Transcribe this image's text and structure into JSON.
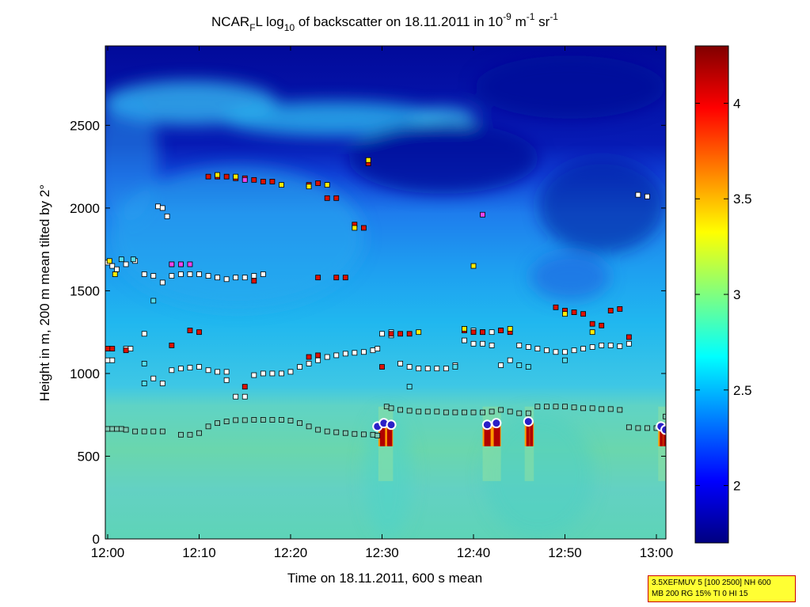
{
  "chart_data": {
    "type": "heatmap",
    "title": {
      "prefix": "NCAR",
      "prefix_sub": "F",
      "main1": "L log",
      "log_sub": "10",
      "main2": " of backscatter on 18.11.2011 in 10",
      "exp1": "-9",
      "mid": " m",
      "exp2": "-1",
      "mid2": " sr",
      "exp3": "-1"
    },
    "xlabel": "Time on 18.11.2011, 600 s mean",
    "ylabel": "Height in m, 200 m mean tilted by 2°",
    "x_ticks": [
      "12:00",
      "12:10",
      "12:20",
      "12:30",
      "12:40",
      "12:50",
      "13:00"
    ],
    "y_ticks": [
      "0",
      "500",
      "1000",
      "1500",
      "2000",
      "2500"
    ],
    "xlim_minutes": [
      0,
      61.5
    ],
    "ylim_m": [
      0,
      2980
    ],
    "colorbar": {
      "ticks": [
        "2",
        "2.5",
        "3",
        "3.5",
        "4"
      ],
      "range": [
        1.7,
        4.3
      ],
      "colormap": "jet"
    },
    "boundary_layer_markers": [
      [
        0,
        665
      ],
      [
        0.5,
        665
      ],
      [
        1,
        665
      ],
      [
        1.5,
        665
      ],
      [
        2,
        660
      ],
      [
        3,
        650
      ],
      [
        4,
        650
      ],
      [
        5,
        650
      ],
      [
        6,
        650
      ],
      [
        8,
        630
      ],
      [
        9,
        630
      ],
      [
        10,
        640
      ],
      [
        11,
        680
      ],
      [
        12,
        700
      ],
      [
        13,
        710
      ],
      [
        14,
        718
      ],
      [
        15,
        718
      ],
      [
        16,
        720
      ],
      [
        17,
        720
      ],
      [
        18,
        720
      ],
      [
        19,
        720
      ],
      [
        20,
        715
      ],
      [
        21,
        700
      ],
      [
        22,
        680
      ],
      [
        23,
        660
      ],
      [
        24,
        650
      ],
      [
        25,
        645
      ],
      [
        26,
        640
      ],
      [
        27,
        635
      ],
      [
        28,
        632
      ],
      [
        29,
        630
      ],
      [
        29.5,
        625
      ],
      [
        30.5,
        800
      ],
      [
        31,
        790
      ],
      [
        32,
        780
      ],
      [
        33,
        775
      ],
      [
        34,
        770
      ],
      [
        35,
        770
      ],
      [
        36,
        770
      ],
      [
        37,
        765
      ],
      [
        38,
        765
      ],
      [
        39,
        765
      ],
      [
        40,
        765
      ],
      [
        41,
        765
      ],
      [
        42,
        770
      ],
      [
        43,
        780
      ],
      [
        44,
        770
      ],
      [
        45,
        760
      ],
      [
        46,
        760
      ],
      [
        47,
        800
      ],
      [
        48,
        800
      ],
      [
        49,
        800
      ],
      [
        50,
        800
      ],
      [
        51,
        795
      ],
      [
        52,
        790
      ],
      [
        53,
        790
      ],
      [
        54,
        785
      ],
      [
        55,
        785
      ],
      [
        56,
        780
      ],
      [
        57,
        675
      ],
      [
        58,
        670
      ],
      [
        59,
        670
      ],
      [
        60,
        670
      ],
      [
        61,
        740
      ]
    ],
    "residual_layer_markers": [
      [
        0,
        1080
      ],
      [
        0.5,
        1080
      ],
      [
        2,
        1150
      ],
      [
        2.5,
        1150
      ],
      [
        4,
        1240
      ],
      [
        5,
        970
      ],
      [
        6,
        940
      ],
      [
        7,
        1020
      ],
      [
        8,
        1030
      ],
      [
        9,
        1035
      ],
      [
        10,
        1040
      ],
      [
        11,
        1020
      ],
      [
        12,
        1010
      ],
      [
        13,
        1010
      ],
      [
        13,
        960
      ],
      [
        14,
        860
      ],
      [
        15,
        860
      ],
      [
        16,
        990
      ],
      [
        17,
        1000
      ],
      [
        18,
        1000
      ],
      [
        19,
        1000
      ],
      [
        20,
        1010
      ],
      [
        21,
        1040
      ],
      [
        22,
        1060
      ],
      [
        23,
        1080
      ],
      [
        24,
        1100
      ],
      [
        25,
        1110
      ],
      [
        26,
        1120
      ],
      [
        27,
        1125
      ],
      [
        28,
        1130
      ],
      [
        29,
        1140
      ],
      [
        29.5,
        1150
      ],
      [
        31,
        1230
      ],
      [
        32,
        1060
      ],
      [
        33,
        1040
      ],
      [
        34,
        1030
      ],
      [
        35,
        1030
      ],
      [
        36,
        1030
      ],
      [
        37,
        1030
      ],
      [
        38,
        1050
      ],
      [
        39,
        1200
      ],
      [
        40,
        1180
      ],
      [
        41,
        1180
      ],
      [
        42,
        1170
      ],
      [
        43,
        1050
      ],
      [
        44,
        1080
      ],
      [
        45,
        1170
      ],
      [
        46,
        1160
      ],
      [
        47,
        1150
      ],
      [
        48,
        1140
      ],
      [
        49,
        1130
      ],
      [
        50,
        1130
      ],
      [
        51,
        1140
      ],
      [
        52,
        1150
      ],
      [
        53,
        1160
      ],
      [
        54,
        1170
      ],
      [
        55,
        1170
      ],
      [
        56,
        1165
      ],
      [
        57,
        1180
      ]
    ],
    "upper_layer_markers": [
      [
        0,
        1670
      ],
      [
        0.5,
        1650
      ],
      [
        1,
        1630
      ],
      [
        2,
        1660
      ],
      [
        3,
        1680
      ],
      [
        4,
        1600
      ],
      [
        5,
        1590
      ],
      [
        6,
        1550
      ],
      [
        7,
        1590
      ],
      [
        8,
        1600
      ],
      [
        9,
        1600
      ],
      [
        10,
        1600
      ],
      [
        11,
        1590
      ],
      [
        12,
        1580
      ],
      [
        13,
        1570
      ],
      [
        14,
        1580
      ],
      [
        15,
        1580
      ],
      [
        16,
        1590
      ],
      [
        17,
        1600
      ],
      [
        5.5,
        2010
      ],
      [
        6,
        2000
      ],
      [
        6.5,
        1950
      ],
      [
        30,
        1240
      ],
      [
        31,
        1250
      ],
      [
        39,
        1270
      ],
      [
        40,
        1260
      ],
      [
        41,
        1250
      ],
      [
        42,
        1250
      ],
      [
        43,
        1260
      ],
      [
        58,
        2080
      ],
      [
        59,
        2070
      ]
    ],
    "aerosol_red_markers": [
      [
        0,
        1150
      ],
      [
        0.5,
        1150
      ],
      [
        2,
        1140
      ],
      [
        7,
        1660
      ],
      [
        8,
        1660
      ],
      [
        7,
        1170
      ],
      [
        9,
        1260
      ],
      [
        10,
        1250
      ],
      [
        11,
        2190
      ],
      [
        12,
        2190
      ],
      [
        13,
        2190
      ],
      [
        14,
        2180
      ],
      [
        15,
        2180
      ],
      [
        16,
        2170
      ],
      [
        17,
        2160
      ],
      [
        18,
        2160
      ],
      [
        15,
        920
      ],
      [
        16,
        1560
      ],
      [
        23,
        1580
      ],
      [
        25,
        1580
      ],
      [
        26,
        1580
      ],
      [
        22,
        2140
      ],
      [
        23,
        2150
      ],
      [
        24,
        2060
      ],
      [
        25,
        2060
      ],
      [
        27,
        1900
      ],
      [
        28,
        1880
      ],
      [
        28.5,
        2270
      ],
      [
        30,
        1040
      ],
      [
        31,
        1240
      ],
      [
        32,
        1240
      ],
      [
        33,
        1240
      ],
      [
        22,
        1100
      ],
      [
        23,
        1110
      ],
      [
        39,
        1260
      ],
      [
        40,
        1250
      ],
      [
        41,
        1250
      ],
      [
        43,
        1260
      ],
      [
        44,
        1250
      ],
      [
        49,
        1400
      ],
      [
        50,
        1380
      ],
      [
        51,
        1370
      ],
      [
        52,
        1360
      ],
      [
        53,
        1300
      ],
      [
        54,
        1290
      ],
      [
        55,
        1380
      ],
      [
        56,
        1390
      ],
      [
        57,
        1220
      ]
    ],
    "aerosol_yellow_markers": [
      [
        0.2,
        1680
      ],
      [
        0.8,
        1600
      ],
      [
        12,
        2200
      ],
      [
        14,
        2190
      ],
      [
        19,
        2140
      ],
      [
        22,
        2130
      ],
      [
        24,
        2140
      ],
      [
        27,
        1880
      ],
      [
        28.5,
        2290
      ],
      [
        34,
        1250
      ],
      [
        39,
        1270
      ],
      [
        44,
        1270
      ],
      [
        50,
        1360
      ],
      [
        53,
        1250
      ],
      [
        40,
        1650
      ]
    ],
    "aerosol_magenta_markers": [
      [
        7,
        1660
      ],
      [
        8,
        1660
      ],
      [
        9,
        1660
      ],
      [
        15,
        2170
      ],
      [
        41,
        1960
      ]
    ],
    "aerosol_cyan_markers": [
      [
        1.5,
        1690
      ],
      [
        2.8,
        1690
      ],
      [
        5,
        1440
      ],
      [
        4,
        940
      ],
      [
        4,
        1060
      ],
      [
        33,
        920
      ],
      [
        38,
        1040
      ],
      [
        45,
        1050
      ],
      [
        46,
        1040
      ],
      [
        50,
        1080
      ]
    ],
    "cloud_base_markers": [
      [
        29.5,
        680
      ],
      [
        30.2,
        700
      ],
      [
        31,
        690
      ],
      [
        41.5,
        690
      ],
      [
        42.5,
        700
      ],
      [
        46,
        710
      ],
      [
        60.5,
        680
      ],
      [
        61,
        660
      ]
    ],
    "cloud_events": [
      {
        "t": [
          29.6,
          31.2
        ],
        "base": 690
      },
      {
        "t": [
          41.0,
          43.0
        ],
        "base": 690
      },
      {
        "t": [
          45.6,
          46.6
        ],
        "base": 705
      },
      {
        "t": [
          60.2,
          61.2
        ],
        "base": 680
      }
    ],
    "info_box": [
      "3.5XEFMUV 5 [100 2500] NH 600",
      "MB 200 RG 15% TI 0 HI 15"
    ],
    "colors": {
      "bl_marker_fill": "#7fc9b3",
      "resid_marker_fill": "#ffffff",
      "red_marker": "#dd1100",
      "yellow_marker": "#ffee00",
      "magenta_marker": "#ee44ee",
      "cyan_marker": "#55ddee",
      "cloud_marker": "#2a1fc7"
    }
  }
}
